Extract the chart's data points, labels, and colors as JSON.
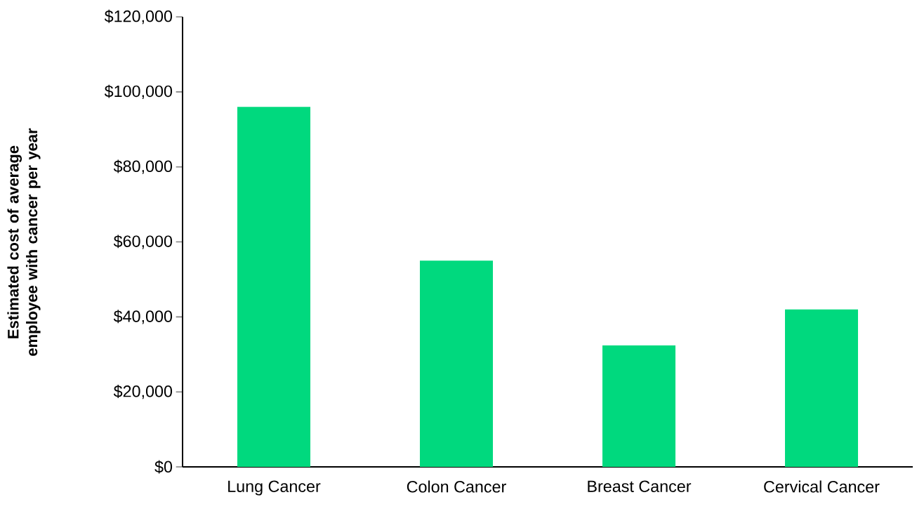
{
  "chart_data": {
    "type": "bar",
    "ylabel": "Estimated cost of average employee with cancer per year",
    "categories": [
      "Lung Cancer",
      "Colon Cancer",
      "Breast Cancer",
      "Cervical Cancer"
    ],
    "values": [
      96000,
      55000,
      32400,
      42000
    ],
    "color": "#00d97e",
    "ylim": [
      0,
      120000
    ],
    "yticks": [
      {
        "value": 0,
        "label": "$0"
      },
      {
        "value": 20000,
        "label": "$20,000"
      },
      {
        "value": 40000,
        "label": "$40,000"
      },
      {
        "value": 60000,
        "label": "$60,000"
      },
      {
        "value": 80000,
        "label": "$80,000"
      },
      {
        "value": 100000,
        "label": "$100,000"
      },
      {
        "value": 120000,
        "label": "$120,000"
      }
    ]
  }
}
